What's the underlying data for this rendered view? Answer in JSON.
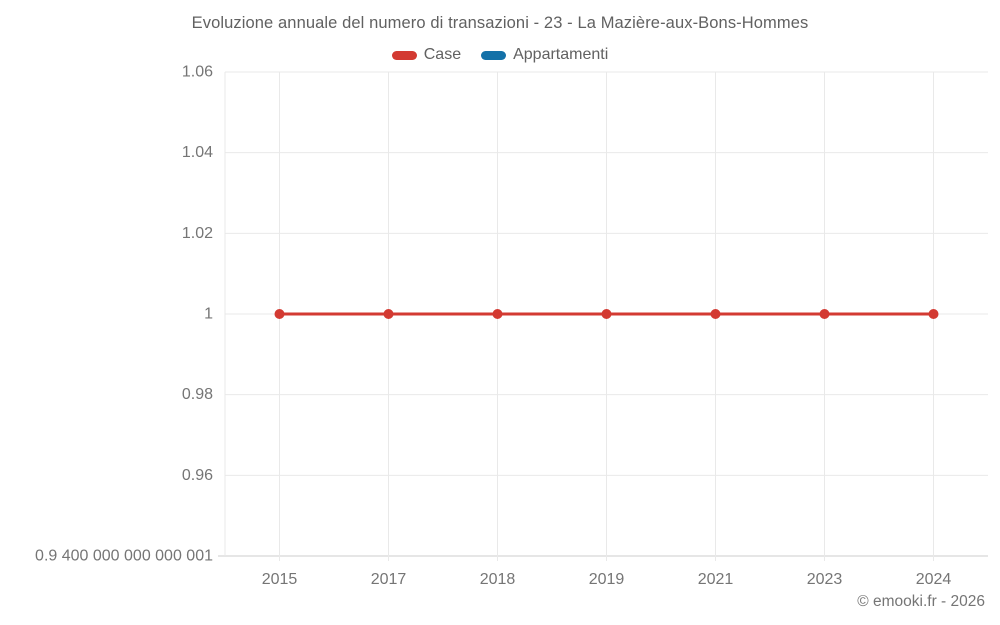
{
  "title": "Evoluzione annuale del numero di transazioni - 23 - La Mazière-aux-Bons-Hommes",
  "legend": {
    "items": [
      {
        "label": "Case",
        "color": "#d33a32"
      },
      {
        "label": "Appartamenti",
        "color": "#1471a8"
      }
    ]
  },
  "footer": {
    "credit": "© emooki.fr - 2026"
  },
  "colors": {
    "grid": "#e9e9e9",
    "axis": "#cccccc",
    "tick_text": "#757575",
    "title_text": "#616161",
    "case_red": "#d33a32",
    "appartamenti_blue": "#1471a8"
  },
  "chart_data": {
    "type": "line",
    "title": "Evoluzione annuale del numero di transazioni - 23 - La Mazière-aux-Bons-Hommes",
    "categories": [
      "2015",
      "2017",
      "2018",
      "2019",
      "2021",
      "2023",
      "2024"
    ],
    "series": [
      {
        "name": "Case",
        "color": "#d33a32",
        "values": [
          1,
          1,
          1,
          1,
          1,
          1,
          1
        ]
      },
      {
        "name": "Appartamenti",
        "color": "#1471a8",
        "values": []
      }
    ],
    "y_ticks": [
      {
        "value": 1.06,
        "label": "1.06"
      },
      {
        "value": 1.04,
        "label": "1.04"
      },
      {
        "value": 1.02,
        "label": "1.02"
      },
      {
        "value": 1.0,
        "label": "1"
      },
      {
        "value": 0.98,
        "label": "0.98"
      },
      {
        "value": 0.96,
        "label": "0.96"
      },
      {
        "value": 0.94,
        "label": "0.9 400 000 000 000 001"
      }
    ],
    "ylim": [
      0.9400000000000001,
      1.06
    ],
    "xlabel": "",
    "ylabel": "",
    "grid": true,
    "legend_position": "top"
  }
}
